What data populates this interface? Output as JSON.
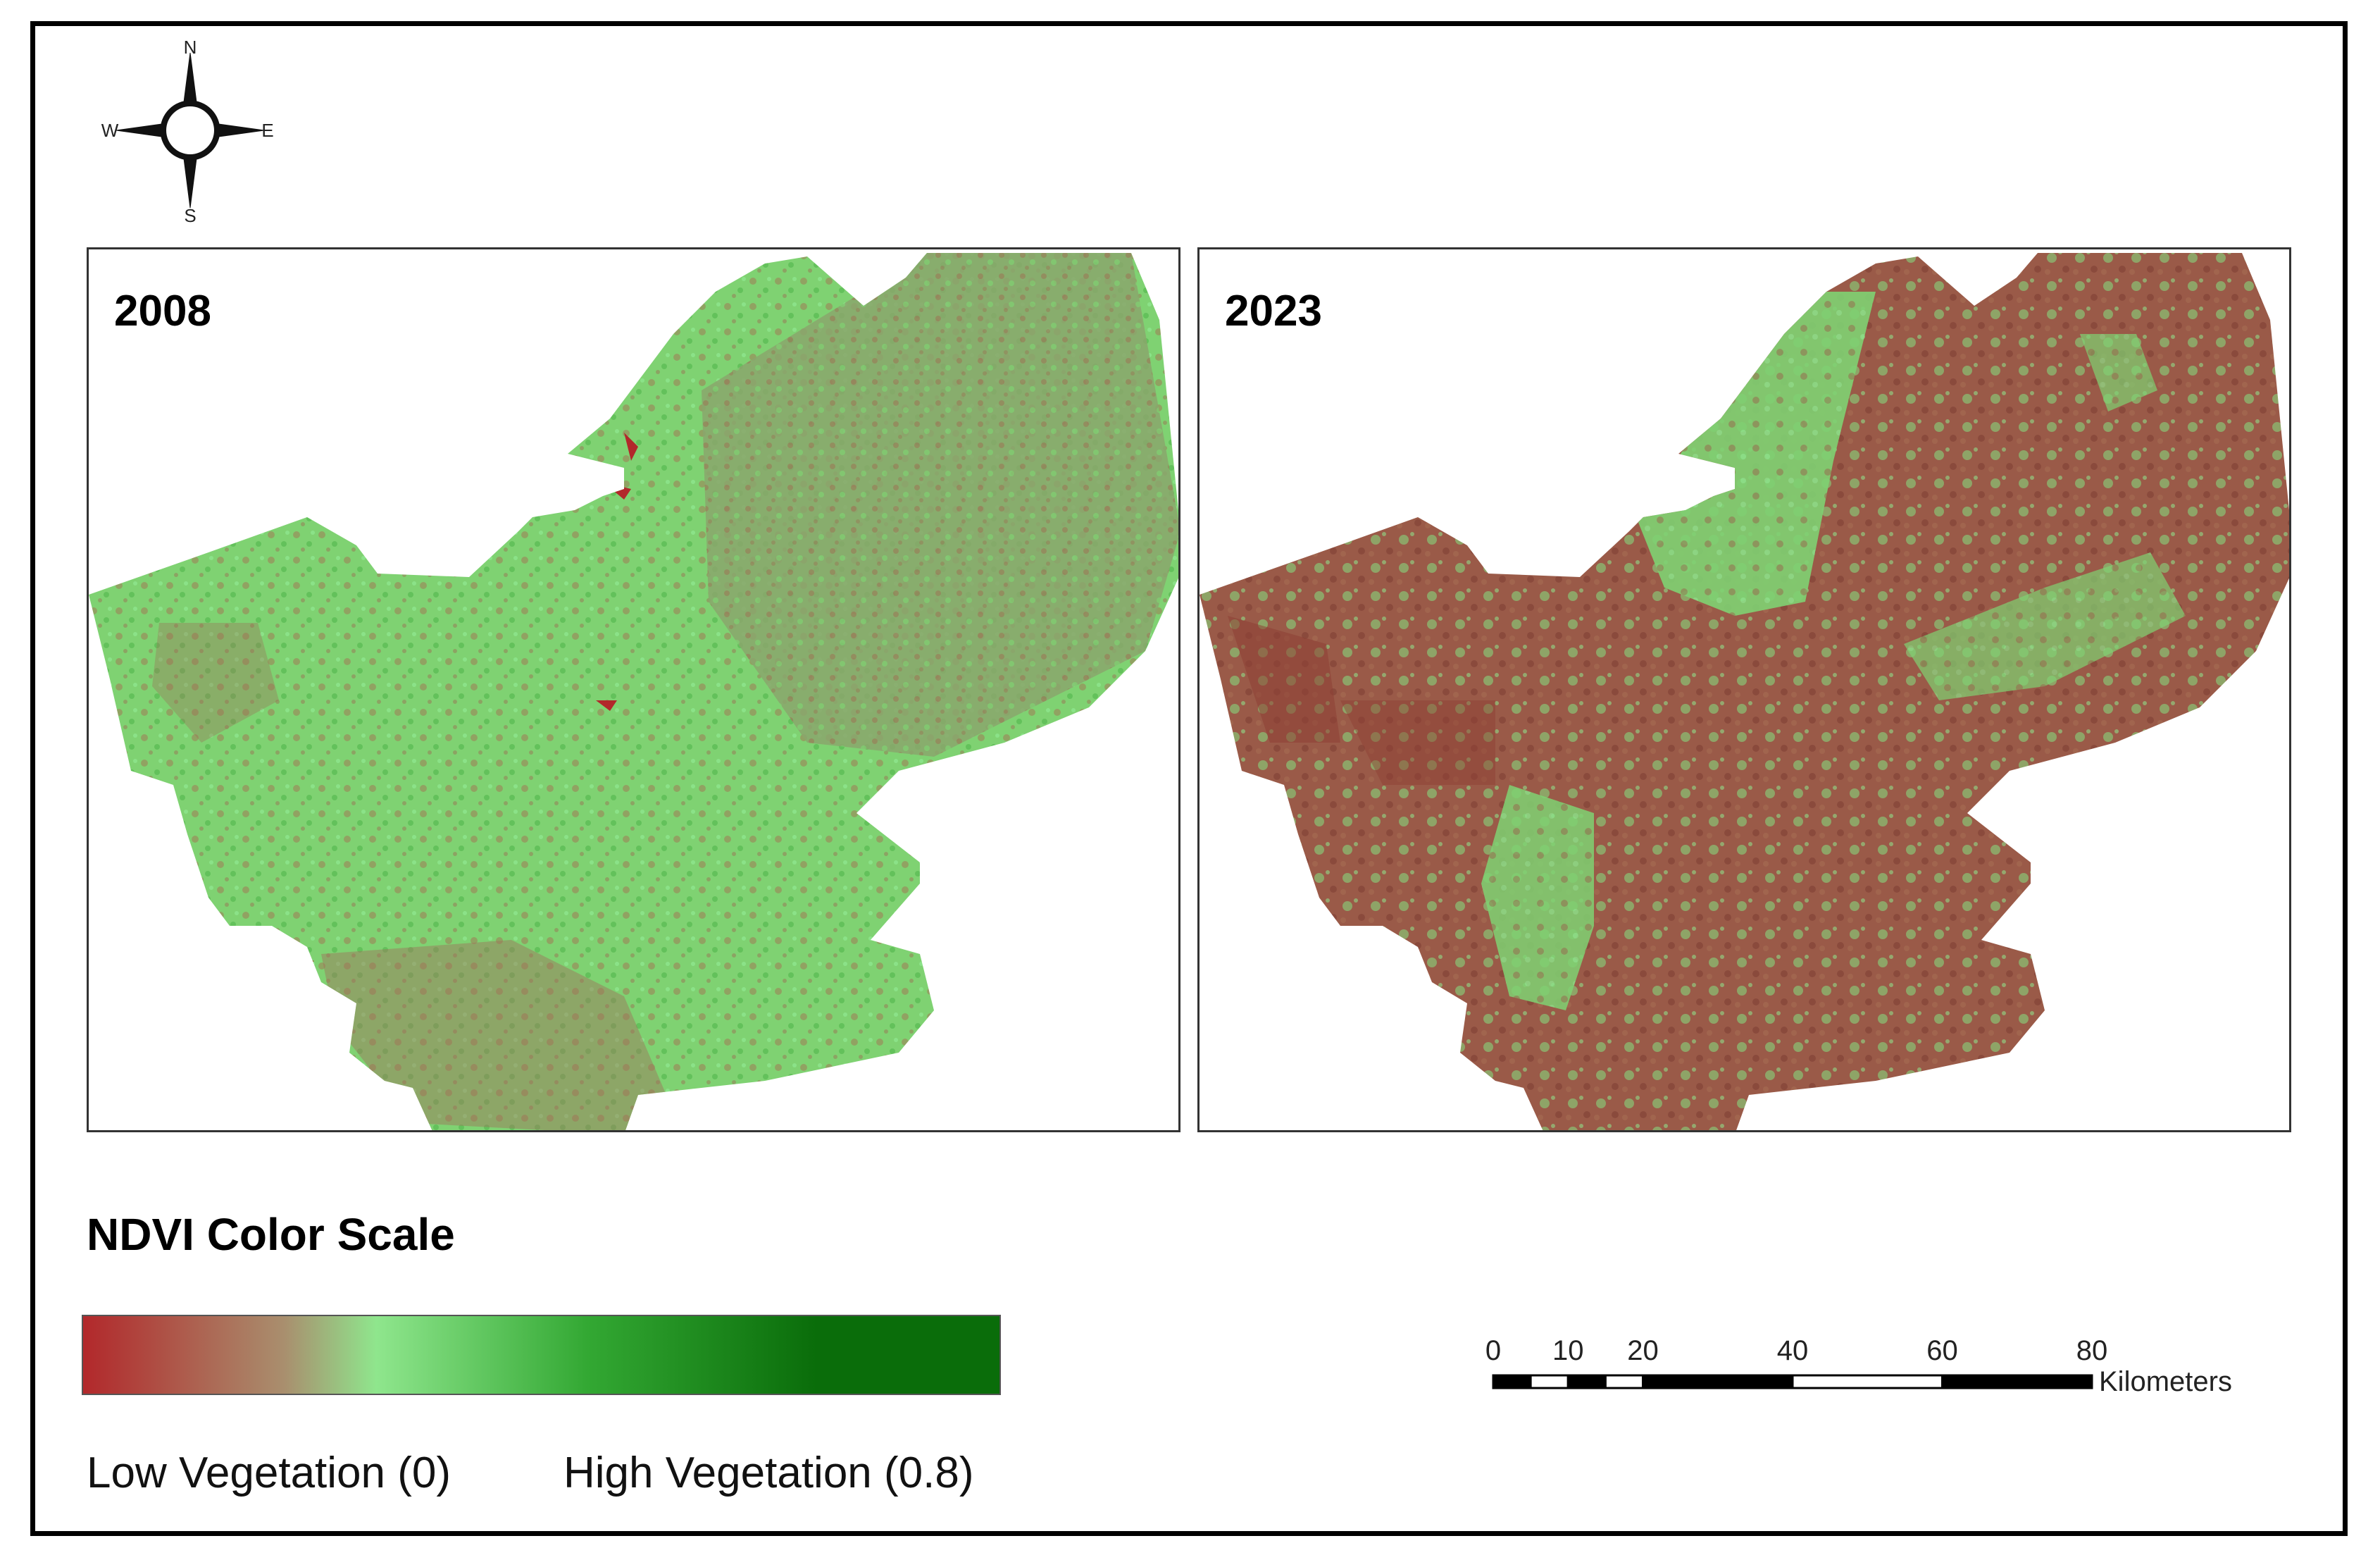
{
  "compass": {
    "icon": "north-arrow-icon",
    "north": "N",
    "south": "S",
    "east": "E",
    "west": "W"
  },
  "panels": [
    {
      "label": "2008",
      "dominant": "high-vegetation-green"
    },
    {
      "label": "2023",
      "dominant": "low-vegetation-brown"
    }
  ],
  "legend": {
    "title": "NDVI Color Scale",
    "low_label": "Low Vegetation (0)",
    "high_label": "High Vegetation (0.8)",
    "colors": {
      "low": "#b2282b",
      "mid": "#8fe68d",
      "high": "#0a6d0a"
    }
  },
  "scale_bar": {
    "ticks": [
      "0",
      "10",
      "20",
      "40",
      "60",
      "80"
    ],
    "units": "Kilometers"
  },
  "colors": {
    "green_2008": "#7bcf6f",
    "brown_2023": "#9a5a48",
    "frame": "#000000"
  }
}
